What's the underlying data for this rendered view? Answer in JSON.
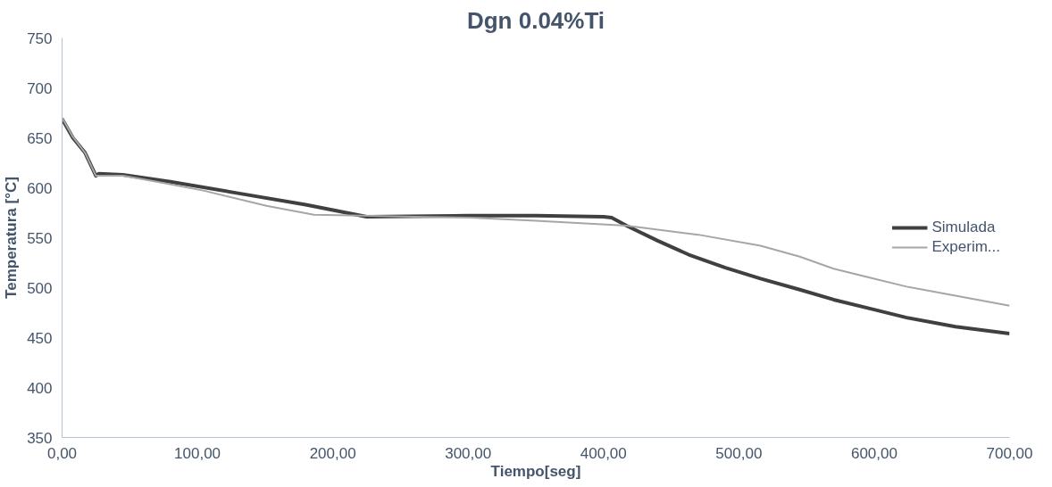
{
  "chart_data": {
    "type": "line",
    "title": "Dgn 0.04%Ti",
    "xlabel": "Tiempo[seg]",
    "ylabel": "Temperatura [°C]",
    "xlim": [
      0,
      700
    ],
    "ylim": [
      350,
      750
    ],
    "xticks": [
      {
        "value": 0,
        "label": "0,00"
      },
      {
        "value": 100,
        "label": "100,00"
      },
      {
        "value": 200,
        "label": "200,00"
      },
      {
        "value": 300,
        "label": "300,00"
      },
      {
        "value": 400,
        "label": "400,00"
      },
      {
        "value": 500,
        "label": "500,00"
      },
      {
        "value": 600,
        "label": "600,00"
      },
      {
        "value": 700,
        "label": "700,00"
      }
    ],
    "yticks": [
      350,
      400,
      450,
      500,
      550,
      600,
      650,
      700,
      750
    ],
    "grid": false,
    "legend": "right",
    "marker": "none",
    "line_style": "solid",
    "series": [
      {
        "name": "Simulada",
        "color": "#404040",
        "x": [
          0,
          8,
          17,
          25,
          27,
          45,
          80,
          128,
          180,
          225,
          300,
          350,
          400,
          406,
          417,
          440,
          463,
          490,
          516,
          545,
          570,
          600,
          624,
          660,
          700
        ],
        "values": [
          669,
          650,
          635,
          612,
          614,
          613,
          606,
          595,
          583,
          571,
          572,
          572,
          571,
          570,
          562,
          547,
          533,
          520,
          509,
          498,
          488,
          478,
          470,
          461,
          454
        ]
      },
      {
        "name": "Experim...",
        "color": "#a6a6a6",
        "x": [
          0,
          8,
          17,
          25,
          27,
          45,
          70,
          105,
          151,
          186,
          221,
          260,
          302,
          350,
          417,
          470,
          516,
          545,
          570,
          600,
          624,
          660,
          700
        ],
        "values": [
          670,
          651,
          635,
          612,
          612,
          612,
          606,
          597,
          582,
          573,
          572,
          571,
          570,
          567,
          562,
          553,
          542,
          531,
          519,
          509,
          501,
          492,
          482
        ]
      }
    ]
  }
}
